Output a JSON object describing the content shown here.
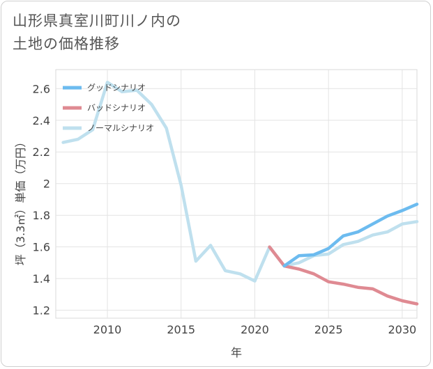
{
  "title": {
    "line1": "山形県真室川町川ノ内の",
    "line2": "土地の価格推移"
  },
  "chart_data": {
    "type": "line",
    "xlabel": "年",
    "ylabel": "坪（3.3㎡）単価（万円）",
    "xlim": [
      2006.5,
      2031
    ],
    "ylim": [
      1.15,
      2.72
    ],
    "x_ticks": [
      2010,
      2015,
      2020,
      2025,
      2030
    ],
    "x_tick_labels": [
      "2010",
      "2015",
      "2020",
      "2025",
      "2030"
    ],
    "y_ticks": [
      1.2,
      1.4,
      1.6,
      1.8,
      2.0,
      2.2,
      2.4,
      2.6
    ],
    "y_tick_labels": [
      "1.2",
      "1.4",
      "1.6",
      "1.8",
      "2",
      "2.2",
      "2.4",
      "2.6"
    ],
    "grid": true,
    "legend_position": "top-left",
    "series": [
      {
        "name": "グッドシナリオ",
        "color": "#6cbbef",
        "x": [
          2022,
          2023,
          2024,
          2025,
          2026,
          2027,
          2028,
          2029,
          2030,
          2031
        ],
        "values": [
          1.48,
          1.545,
          1.55,
          1.59,
          1.67,
          1.695,
          1.745,
          1.795,
          1.83,
          1.87
        ]
      },
      {
        "name": "バッドシナリオ",
        "color": "#df8a92",
        "x": [
          2021,
          2022,
          2023,
          2024,
          2025,
          2026,
          2027,
          2028,
          2029,
          2030,
          2031
        ],
        "values": [
          1.6,
          1.48,
          1.46,
          1.43,
          1.38,
          1.365,
          1.345,
          1.335,
          1.29,
          1.26,
          1.24
        ]
      },
      {
        "name": "ノーマルシナリオ",
        "color": "#bfe0ee",
        "x": [
          2007,
          2008,
          2009,
          2010,
          2011,
          2012,
          2013,
          2014,
          2015,
          2016,
          2017,
          2018,
          2019,
          2020,
          2021,
          2022,
          2023,
          2024,
          2025,
          2026,
          2027,
          2028,
          2029,
          2030,
          2031
        ],
        "values": [
          2.26,
          2.28,
          2.34,
          2.64,
          2.58,
          2.59,
          2.5,
          2.35,
          1.99,
          1.51,
          1.61,
          1.45,
          1.43,
          1.385,
          1.6,
          1.48,
          1.5,
          1.545,
          1.555,
          1.615,
          1.635,
          1.675,
          1.695,
          1.745,
          1.76
        ]
      }
    ]
  }
}
